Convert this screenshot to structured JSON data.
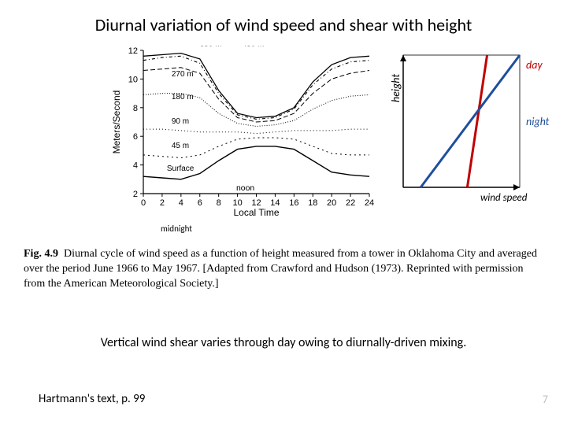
{
  "title": "Diurnal variation of wind speed and shear with height",
  "left_chart": {
    "type": "line",
    "xlabel": "Local Time",
    "ylabel": "Meters/Second",
    "xlim": [
      0,
      24
    ],
    "ylim": [
      2,
      12
    ],
    "xticks": [
      0,
      2,
      4,
      6,
      8,
      10,
      12,
      14,
      16,
      18,
      20,
      22,
      24
    ],
    "yticks": [
      2,
      4,
      6,
      8,
      10,
      12
    ],
    "axis_color": "#000000",
    "background_color": "#ffffff",
    "tick_fontsize": 11,
    "label_fontsize": 12,
    "annotations": {
      "noon": "noon",
      "midnight": "midnight"
    },
    "series": [
      {
        "label": "350 m",
        "dash": "none",
        "width": 1.3,
        "color": "#000000",
        "x": [
          0,
          2,
          4,
          6,
          8,
          10,
          12,
          14,
          16,
          18,
          20,
          22,
          24
        ],
        "y": [
          11.6,
          11.7,
          11.8,
          11.4,
          9.2,
          7.6,
          7.3,
          7.4,
          8.0,
          9.8,
          11.0,
          11.5,
          11.6
        ]
      },
      {
        "label": "450 m",
        "dash": "4,3,1,3",
        "width": 1.1,
        "color": "#000000",
        "x": [
          0,
          2,
          4,
          6,
          8,
          10,
          12,
          14,
          16,
          18,
          20,
          22,
          24
        ],
        "y": [
          11.3,
          11.5,
          11.6,
          11.1,
          9.0,
          7.5,
          7.2,
          7.3,
          7.9,
          9.6,
          10.7,
          11.2,
          11.3
        ]
      },
      {
        "label": "270 m",
        "dash": "6,3",
        "width": 1.0,
        "color": "#000000",
        "x": [
          0,
          2,
          4,
          6,
          8,
          10,
          12,
          14,
          16,
          18,
          20,
          22,
          24
        ],
        "y": [
          10.6,
          10.7,
          10.8,
          10.4,
          8.6,
          7.3,
          7.0,
          7.1,
          7.6,
          9.0,
          10.0,
          10.4,
          10.6
        ]
      },
      {
        "label": "180 m",
        "dash": "1,2",
        "width": 1.0,
        "color": "#000000",
        "x": [
          0,
          2,
          4,
          6,
          8,
          10,
          12,
          14,
          16,
          18,
          20,
          22,
          24
        ],
        "y": [
          8.9,
          9.0,
          9.0,
          8.7,
          7.6,
          6.9,
          6.7,
          6.8,
          7.1,
          7.9,
          8.5,
          8.8,
          8.9
        ]
      },
      {
        "label": "90 m",
        "dash": "1,3",
        "width": 1.0,
        "color": "#000000",
        "x": [
          0,
          2,
          4,
          6,
          8,
          10,
          12,
          14,
          16,
          18,
          20,
          22,
          24
        ],
        "y": [
          6.5,
          6.5,
          6.4,
          6.3,
          6.3,
          6.3,
          6.2,
          6.3,
          6.4,
          6.4,
          6.4,
          6.5,
          6.5
        ]
      },
      {
        "label": "45 m",
        "dash": "2,4",
        "width": 1.0,
        "color": "#000000",
        "x": [
          0,
          2,
          4,
          6,
          8,
          10,
          12,
          14,
          16,
          18,
          20,
          22,
          24
        ],
        "y": [
          4.7,
          4.6,
          4.5,
          4.7,
          5.3,
          5.8,
          5.9,
          5.9,
          5.8,
          5.3,
          4.8,
          4.7,
          4.7
        ]
      },
      {
        "label": "Surface",
        "dash": "none",
        "width": 1.4,
        "color": "#000000",
        "x": [
          0,
          2,
          4,
          6,
          8,
          10,
          12,
          14,
          16,
          18,
          20,
          22,
          24
        ],
        "y": [
          3.2,
          3.1,
          3.0,
          3.4,
          4.3,
          5.1,
          5.3,
          5.3,
          5.1,
          4.3,
          3.5,
          3.3,
          3.2
        ]
      }
    ],
    "series_inline_labels": [
      {
        "text": "350 m",
        "x": 6,
        "y": 12.3
      },
      {
        "text": "450 m",
        "x": 10.5,
        "y": 12.3
      },
      {
        "text": "270 m",
        "x": 3,
        "y": 10.2
      },
      {
        "text": "180 m",
        "x": 3,
        "y": 8.6
      },
      {
        "text": "90 m",
        "x": 3,
        "y": 6.9
      },
      {
        "text": "45 m",
        "x": 3,
        "y": 5.2
      },
      {
        "text": "Surface",
        "x": 2.5,
        "y": 3.6
      }
    ]
  },
  "right_chart": {
    "type": "line",
    "xlabel": "wind speed",
    "ylabel": "height",
    "axis_color": "#000000",
    "background_color": "#ffffff",
    "series": [
      {
        "name": "day",
        "color": "#c00000",
        "width": 3,
        "x1": 0.55,
        "y1": 0.0,
        "x2": 0.72,
        "y2": 1.0
      },
      {
        "name": "night",
        "color": "#1f4e9c",
        "width": 3,
        "x1": 0.15,
        "y1": 0.0,
        "x2": 1.0,
        "y2": 1.0
      }
    ],
    "labels": {
      "day": "day",
      "night": "night"
    }
  },
  "caption": {
    "prefix": "Fig. 4.9",
    "text": "Diurnal cycle of wind speed as a function of height measured from a tower in Oklahoma City and averaged over the period June 1966 to May 1967. [Adapted from Crawford and Hudson (1973). Reprinted with permission from the American Meteorological Society.]"
  },
  "conclusion": "Vertical wind shear varies through day owing to diurnally-driven mixing.",
  "source": "Hartmann's text, p. 99",
  "page_number": "7",
  "colors": {
    "title": "#000000",
    "text": "#000000",
    "pagenum": "#bfbfbf",
    "day": "#c00000",
    "night": "#1f4e9c",
    "axis": "#000000",
    "background": "#ffffff"
  }
}
